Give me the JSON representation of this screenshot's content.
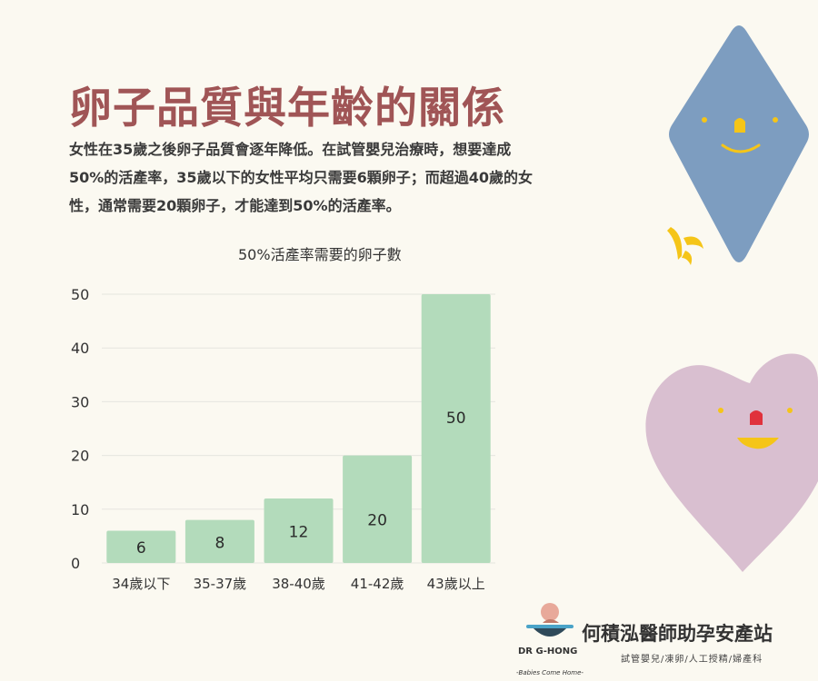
{
  "page": {
    "title": "卵子品質與年齡的關係",
    "description": "女性在35歲之後卵子品質會逐年降低。在試管嬰兒治療時，想要達成50%的活產率，35歲以下的女性平均只需要6顆卵子；而超過40歲的女性，通常需要20顆卵子，才能達到50%的活產率。"
  },
  "chart_data": {
    "type": "bar",
    "title": "50%活產率需要的卵子數",
    "categories": [
      "34歲以下",
      "35-37歲",
      "38-40歲",
      "41-42歲",
      "43歲以上"
    ],
    "values": [
      6,
      8,
      12,
      20,
      50
    ],
    "ylim": [
      0,
      50
    ],
    "yticks": [
      "0",
      "10",
      "20",
      "30",
      "40",
      "50"
    ],
    "grid": true,
    "bar_color": "#b3dbbb",
    "data_labels": [
      "6",
      "8",
      "12",
      "20",
      "50"
    ]
  },
  "footer": {
    "name": "何積泓醫師助孕安產站",
    "subtitle": "試管嬰兒/凍卵/人工授精/婦產科",
    "logo_text": "DR G-HONG",
    "logo_tagline": "-Babies Come Home-"
  },
  "decorations": {
    "diamond_color": "#7d9dc0",
    "heart_color": "#d9bfd0",
    "accent_yellow": "#f5c518",
    "accent_red": "#e0313c"
  }
}
